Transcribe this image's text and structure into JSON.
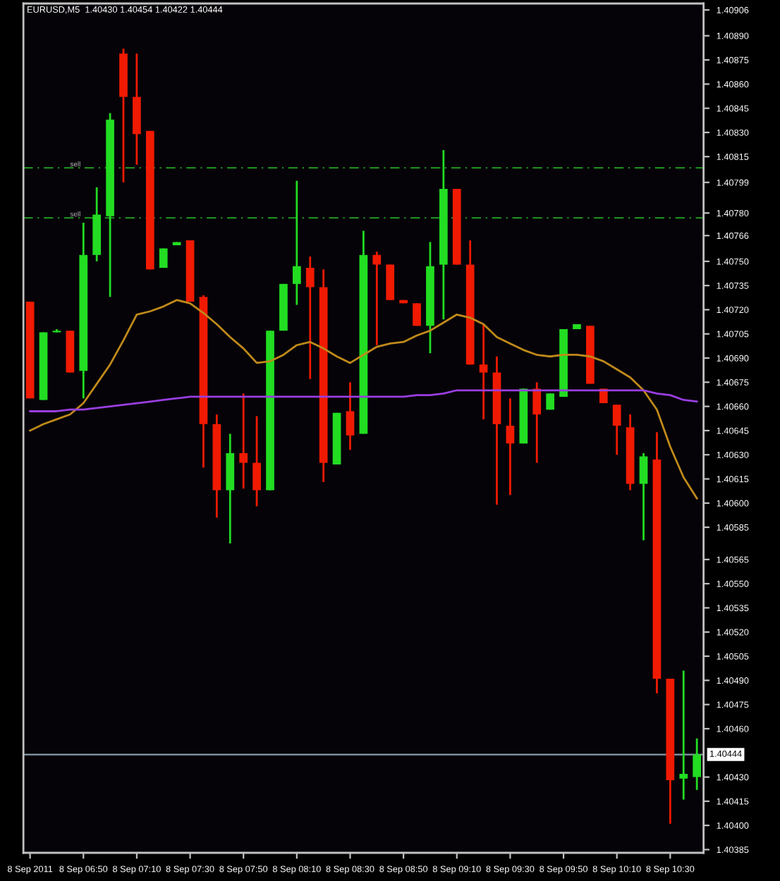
{
  "chart_data": {
    "type": "candlestick",
    "title": "EURUSD,M5  1.40430 1.40454 1.40422 1.40444",
    "categories": [
      "8 Sep 2011",
      null,
      null,
      null,
      "8 Sep 06:50",
      null,
      null,
      null,
      "8 Sep 07:10",
      null,
      null,
      null,
      "8 Sep 07:30",
      null,
      null,
      null,
      "8 Sep 07:50",
      null,
      null,
      null,
      "8 Sep 08:10",
      null,
      null,
      null,
      "8 Sep 08:30",
      null,
      null,
      null,
      "8 Sep 08:50",
      null,
      null,
      null,
      "8 Sep 09:10",
      null,
      null,
      null,
      "8 Sep 09:30",
      null,
      null,
      null,
      "8 Sep 09:50",
      null,
      null,
      null,
      "8 Sep 10:10",
      null,
      null,
      null,
      "8 Sep 10:30",
      null,
      null
    ],
    "ohlc": [
      [
        1.40725,
        1.40725,
        1.40665,
        1.40665
      ],
      [
        1.40664,
        1.40706,
        1.40664,
        1.40706
      ],
      [
        1.40706,
        1.40708,
        1.40706,
        1.40707
      ],
      [
        1.40707,
        1.40707,
        1.40681,
        1.40681
      ],
      [
        1.40682,
        1.40774,
        1.40665,
        1.40754
      ],
      [
        1.40754,
        1.40796,
        1.4075,
        1.40779
      ],
      [
        1.40778,
        1.40842,
        1.40728,
        1.40838
      ],
      [
        1.40879,
        1.40882,
        1.40799,
        1.40852
      ],
      [
        1.40852,
        1.40879,
        1.4081,
        1.40829
      ],
      [
        1.40831,
        1.40831,
        1.40745,
        1.40745
      ],
      [
        1.40746,
        1.40758,
        1.40746,
        1.40758
      ],
      [
        1.4076,
        1.40762,
        1.4076,
        1.40762
      ],
      [
        1.40763,
        1.40763,
        1.40725,
        1.40725
      ],
      [
        1.40728,
        1.40729,
        1.40622,
        1.40649
      ],
      [
        1.40649,
        1.40655,
        1.40591,
        1.40608
      ],
      [
        1.40608,
        1.40643,
        1.40575,
        1.40631
      ],
      [
        1.40631,
        1.40668,
        1.40609,
        1.40625
      ],
      [
        1.40625,
        1.40654,
        1.40598,
        1.40608
      ],
      [
        1.40608,
        1.40707,
        1.40608,
        1.40707
      ],
      [
        1.40707,
        1.40736,
        1.40707,
        1.40736
      ],
      [
        1.40736,
        1.408,
        1.40723,
        1.40747
      ],
      [
        1.40746,
        1.40753,
        1.40677,
        1.40734
      ],
      [
        1.40734,
        1.40745,
        1.40613,
        1.40625
      ],
      [
        1.40624,
        1.40656,
        1.40624,
        1.40656
      ],
      [
        1.40657,
        1.40675,
        1.40633,
        1.40642
      ],
      [
        1.40643,
        1.40769,
        1.40643,
        1.40754
      ],
      [
        1.40754,
        1.40756,
        1.40698,
        1.40748
      ],
      [
        1.40748,
        1.40748,
        1.40726,
        1.40726
      ],
      [
        1.40726,
        1.40726,
        1.40724,
        1.40724
      ],
      [
        1.40724,
        1.40724,
        1.4071,
        1.4071
      ],
      [
        1.4071,
        1.40762,
        1.40693,
        1.40747
      ],
      [
        1.40748,
        1.40819,
        1.40714,
        1.40795
      ],
      [
        1.40795,
        1.40795,
        1.40748,
        1.40748
      ],
      [
        1.40748,
        1.40763,
        1.40686,
        1.40686
      ],
      [
        1.40686,
        1.40711,
        1.40652,
        1.40681
      ],
      [
        1.40681,
        1.40691,
        1.40599,
        1.40649
      ],
      [
        1.40648,
        1.40665,
        1.40605,
        1.40637
      ],
      [
        1.40637,
        1.40671,
        1.40637,
        1.40671
      ],
      [
        1.40671,
        1.40675,
        1.40625,
        1.40655
      ],
      [
        1.40658,
        1.40668,
        1.40658,
        1.40668
      ],
      [
        1.40666,
        1.40708,
        1.40666,
        1.40708
      ],
      [
        1.40708,
        1.40711,
        1.40708,
        1.40711
      ],
      [
        1.4071,
        1.4071,
        1.40674,
        1.40674
      ],
      [
        1.40671,
        1.40671,
        1.40662,
        1.40662
      ],
      [
        1.40661,
        1.40661,
        1.4063,
        1.40648
      ],
      [
        1.40647,
        1.40655,
        1.40608,
        1.40612
      ],
      [
        1.40612,
        1.40631,
        1.40577,
        1.40629
      ],
      [
        1.40627,
        1.40644,
        1.40482,
        1.40491
      ],
      [
        1.40491,
        1.40491,
        1.40401,
        1.40428
      ],
      [
        1.40429,
        1.40496,
        1.40416,
        1.40432
      ],
      [
        1.4043,
        1.40454,
        1.40422,
        1.40444
      ]
    ],
    "colors": [
      "#f01a00",
      "#22dd22",
      "#22dd22",
      "#f01a00",
      "#22dd22",
      "#22dd22",
      "#22dd22",
      "#f01a00",
      "#f01a00",
      "#f01a00",
      "#22dd22",
      "#22dd22",
      "#f01a00",
      "#f01a00",
      "#f01a00",
      "#22dd22",
      "#f01a00",
      "#f01a00",
      "#22dd22",
      "#22dd22",
      "#22dd22",
      "#f01a00",
      "#f01a00",
      "#22dd22",
      "#f01a00",
      "#22dd22",
      "#f01a00",
      "#f01a00",
      "#f01a00",
      "#f01a00",
      "#22dd22",
      "#22dd22",
      "#f01a00",
      "#f01a00",
      "#f01a00",
      "#f01a00",
      "#f01a00",
      "#22dd22",
      "#f01a00",
      "#22dd22",
      "#22dd22",
      "#22dd22",
      "#f01a00",
      "#f01a00",
      "#f01a00",
      "#f01a00",
      "#22dd22",
      "#f01a00",
      "#f01a00",
      "#22dd22",
      "#22dd22"
    ],
    "series": [
      {
        "type": "line",
        "color": "#c08a1a",
        "values": [
          1.40645,
          1.40649,
          1.40652,
          1.40655,
          1.40662,
          1.40674,
          1.40686,
          1.40701,
          1.40717,
          1.40719,
          1.40722,
          1.40726,
          1.40724,
          1.40718,
          1.40711,
          1.40703,
          1.40696,
          1.40687,
          1.40688,
          1.40692,
          1.40698,
          1.407,
          1.40696,
          1.40691,
          1.40687,
          1.40692,
          1.40697,
          1.40699,
          1.407,
          1.40704,
          1.40707,
          1.40712,
          1.40717,
          1.40715,
          1.40711,
          1.40703,
          1.40699,
          1.40695,
          1.40692,
          1.40691,
          1.40692,
          1.40692,
          1.40691,
          1.40688,
          1.40683,
          1.40678,
          1.4067,
          1.40658,
          1.40635,
          1.40616,
          1.40603
        ]
      },
      {
        "type": "line",
        "color": "#9a3ee0",
        "values": [
          1.40657,
          1.40657,
          1.40657,
          1.40658,
          1.40658,
          1.40659,
          1.4066,
          1.40661,
          1.40662,
          1.40663,
          1.40664,
          1.40665,
          1.40666,
          1.40666,
          1.40666,
          1.40666,
          1.40666,
          1.40666,
          1.40666,
          1.40666,
          1.40666,
          1.40666,
          1.40666,
          1.40666,
          1.40666,
          1.40666,
          1.40666,
          1.40666,
          1.40666,
          1.40667,
          1.40667,
          1.40668,
          1.4067,
          1.4067,
          1.4067,
          1.4067,
          1.4067,
          1.4067,
          1.4067,
          1.4067,
          1.4067,
          1.4067,
          1.4067,
          1.4067,
          1.4067,
          1.4067,
          1.4067,
          1.40668,
          1.40667,
          1.40664,
          1.40663
        ]
      }
    ],
    "ylim": [
      1.40383,
      1.4091
    ],
    "yticks": [
      1.40906,
      {
        "value": 1.4089,
        "label": "1.40890"
      },
      1.40875,
      {
        "value": 1.4086,
        "label": "1.40860"
      },
      1.40845,
      {
        "value": 1.4083,
        "label": "1.40830"
      },
      1.40815,
      1.40799,
      {
        "value": 1.4078,
        "label": "1.40780"
      },
      1.40766,
      {
        "value": 1.4075,
        "label": "1.40750"
      },
      1.40735,
      {
        "value": 1.4072,
        "label": "1.40720"
      },
      1.40705,
      {
        "value": 1.4069,
        "label": "1.40690"
      },
      1.40675,
      {
        "value": 1.4066,
        "label": "1.40660"
      },
      1.40645,
      {
        "value": 1.4063,
        "label": "1.40630"
      },
      1.40615,
      {
        "value": 1.406,
        "label": "1.40600"
      },
      1.40585,
      1.40565,
      {
        "value": 1.4055,
        "label": "1.40550"
      },
      1.40535,
      {
        "value": 1.4052,
        "label": "1.40520"
      },
      1.40505,
      {
        "value": 1.4049,
        "label": "1.40490"
      },
      1.40475,
      {
        "value": 1.4046,
        "label": "1.40460"
      },
      {
        "value": 1.4043,
        "label": "1.40430"
      },
      1.40415,
      {
        "value": 1.404,
        "label": "1.40400"
      },
      1.40385
    ],
    "ref_lines": [
      {
        "axis": "y",
        "value": 1.40808,
        "label": "sell",
        "color": "#1f8a1f",
        "line_style": "dashed"
      },
      {
        "axis": "y",
        "value": 1.40777,
        "label": "sell",
        "color": "#1f8a1f",
        "line_style": "dashed"
      },
      {
        "axis": "y",
        "value": 1.40444,
        "label": "1.40444",
        "color": "#8a9aa8",
        "line_style": "solid"
      }
    ],
    "grid": false,
    "legend": false
  }
}
